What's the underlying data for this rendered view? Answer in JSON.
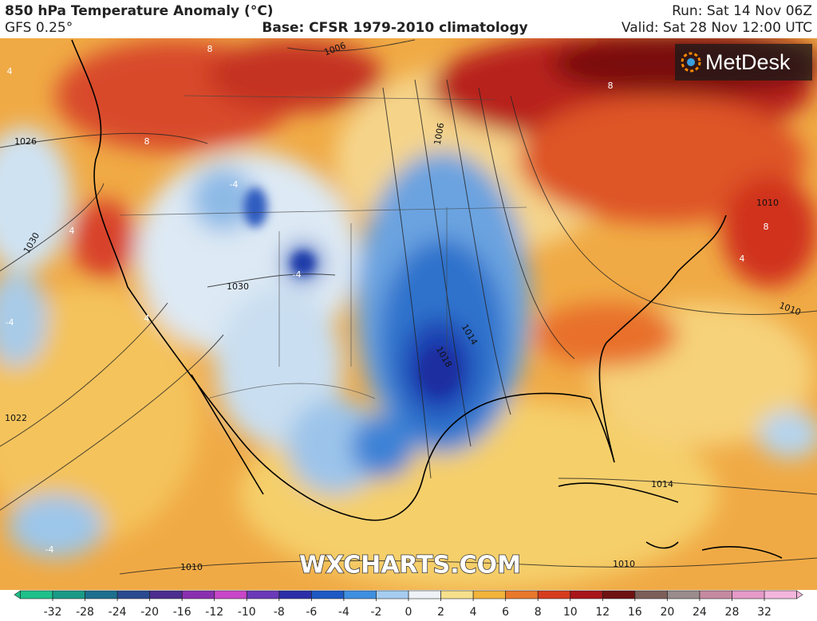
{
  "header": {
    "title": "850 hPa Temperature Anomaly (°C)",
    "model": "GFS 0.25°",
    "base": "Base: CFSR 1979-2010 climatology",
    "run": "Run: Sat 14 Nov 06Z",
    "valid": "Valid: Sat 28 Nov 12:00 UTC"
  },
  "logo": "MetDesk",
  "watermark": "WXCHARTS.COM",
  "map": {
    "isobar_labels": [
      "1026",
      "1030",
      "1030",
      "1022",
      "1010",
      "1010",
      "1010",
      "1006",
      "1006",
      "1014",
      "1018",
      "1014",
      "1010"
    ],
    "anomaly_labels": [
      "8",
      "8",
      "8",
      "4",
      "4",
      "-4",
      "-4",
      "-4",
      "4",
      "8",
      "-4",
      "4"
    ]
  },
  "colorbar": {
    "ticks": [
      -32,
      -28,
      -24,
      -20,
      -16,
      -12,
      -10,
      -8,
      -6,
      -4,
      -2,
      0,
      2,
      4,
      6,
      8,
      10,
      12,
      16,
      20,
      24,
      28,
      32
    ],
    "colors": [
      "#1fc08a",
      "#1a9a86",
      "#1d6f8e",
      "#2a4a90",
      "#4b2d8f",
      "#8a2fb0",
      "#c846c8",
      "#6a3ab8",
      "#2c2ea8",
      "#1e58c4",
      "#3f8fe0",
      "#a6cdef",
      "#eef2f6",
      "#f6e08c",
      "#f2b33a",
      "#e8782a",
      "#d63c1e",
      "#a8161a",
      "#6e1212",
      "#7d5e58",
      "#9a8c8c",
      "#c68aa0",
      "#e59ac8",
      "#f3b6dc"
    ]
  }
}
